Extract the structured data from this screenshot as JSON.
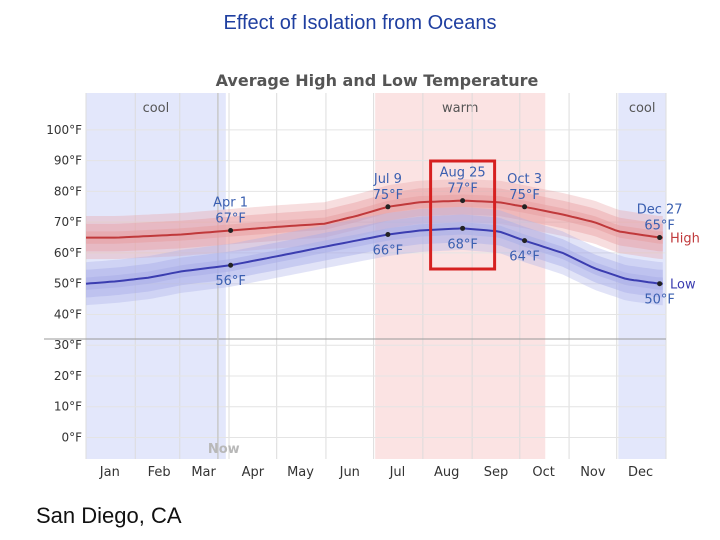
{
  "slide": {
    "title": "Effect of Isolation from Oceans",
    "caption": "San Diego, CA"
  },
  "chart_data": {
    "type": "line",
    "title": "Average High and Low Temperature",
    "y_unit": "°F",
    "ylim": [
      -7,
      112
    ],
    "yticks": [
      {
        "value": 0,
        "label": "0°F"
      },
      {
        "value": 10,
        "label": "10°F"
      },
      {
        "value": 20,
        "label": "20°F"
      },
      {
        "value": 30,
        "label": "30°F"
      },
      {
        "value": 40,
        "label": "40°F"
      },
      {
        "value": 50,
        "label": "50°F"
      },
      {
        "value": 60,
        "label": "60°F"
      },
      {
        "value": 70,
        "label": "70°F"
      },
      {
        "value": 80,
        "label": "80°F"
      },
      {
        "value": 90,
        "label": "90°F"
      },
      {
        "value": 100,
        "label": "100°F"
      }
    ],
    "freezing_line": 32,
    "months": [
      "Jan",
      "Feb",
      "Mar",
      "Apr",
      "May",
      "Jun",
      "Jul",
      "Aug",
      "Sep",
      "Oct",
      "Nov",
      "Dec"
    ],
    "now_label": "Now",
    "now_day": 83,
    "seasons": [
      {
        "label": "cool",
        "start_day": 0,
        "end_day": 88,
        "color": "#e3e7fb"
      },
      {
        "label": "warm",
        "start_day": 182,
        "end_day": 289,
        "color": "#fbe3e3"
      },
      {
        "label": "cool",
        "start_day": 335,
        "end_day": 365,
        "color": "#e3e7fb"
      }
    ],
    "series": [
      {
        "name": "High",
        "color": "#c0393b",
        "band_color": "#e8a0a3",
        "points": [
          [
            0,
            65
          ],
          [
            20,
            65
          ],
          [
            40,
            65.5
          ],
          [
            60,
            66
          ],
          [
            91,
            67.3
          ],
          [
            121,
            68.5
          ],
          [
            150,
            69.5
          ],
          [
            170,
            72
          ],
          [
            190,
            75
          ],
          [
            210,
            76.5
          ],
          [
            237,
            77
          ],
          [
            260,
            76.5
          ],
          [
            276,
            75
          ],
          [
            300,
            72.5
          ],
          [
            320,
            70
          ],
          [
            335,
            67
          ],
          [
            361,
            65
          ],
          [
            365,
            65
          ]
        ]
      },
      {
        "name": "Low",
        "color": "#3b3db0",
        "band_color": "#a9aee8",
        "points": [
          [
            0,
            50
          ],
          [
            20,
            50.8
          ],
          [
            40,
            52
          ],
          [
            60,
            54
          ],
          [
            91,
            56
          ],
          [
            121,
            59
          ],
          [
            150,
            62
          ],
          [
            170,
            64
          ],
          [
            190,
            66
          ],
          [
            210,
            67.3
          ],
          [
            237,
            68
          ],
          [
            260,
            67
          ],
          [
            276,
            64
          ],
          [
            300,
            60
          ],
          [
            320,
            55
          ],
          [
            340,
            51.5
          ],
          [
            361,
            50
          ],
          [
            365,
            50
          ]
        ]
      }
    ],
    "annotations": [
      {
        "date": "Apr 1",
        "high": "67°F",
        "low": "56°F",
        "day": 91,
        "high_value": 67.3,
        "low_value": 56
      },
      {
        "date": "Jul 9",
        "high": "75°F",
        "low": "66°F",
        "day": 190,
        "high_value": 75,
        "low_value": 66
      },
      {
        "date": "Aug 25",
        "high": "77°F",
        "low": "68°F",
        "day": 237,
        "high_value": 77,
        "low_value": 68
      },
      {
        "date": "Oct 3",
        "high": "75°F",
        "low": "64°F",
        "day": 276,
        "high_value": 75,
        "low_value": 64
      },
      {
        "date": "Dec 27",
        "high": "65°F",
        "low": "50°F",
        "day": 361,
        "high_value": 65,
        "low_value": 50
      }
    ],
    "highlight_day": 237,
    "highlight_color": "#d62020"
  }
}
